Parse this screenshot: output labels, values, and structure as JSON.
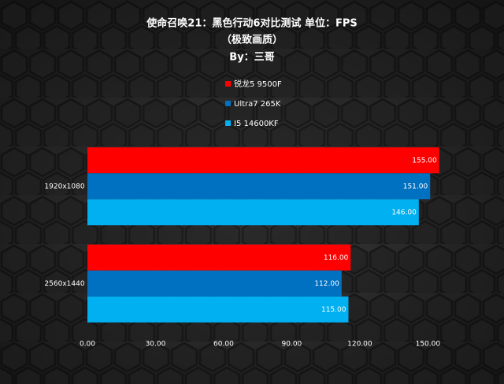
{
  "chart_data": {
    "type": "bar",
    "orientation": "horizontal",
    "title": "使命召唤21：黑色行动6对比测试 单位：FPS",
    "subtitle": "（极致画质）",
    "author": "By：三哥",
    "categories": [
      "1920x1080",
      "2560x1440"
    ],
    "series": [
      {
        "name": "锐龙5 9500F",
        "color": "#ff0000",
        "values": [
          155,
          116
        ],
        "value_labels": [
          "155.00",
          "116.00"
        ]
      },
      {
        "name": "Ultra7 265K",
        "color": "#0070c0",
        "values": [
          151,
          112
        ],
        "value_labels": [
          "151.00",
          "112.00"
        ]
      },
      {
        "name": "I5 14600KF",
        "color": "#00b0f0",
        "values": [
          146,
          115
        ],
        "value_labels": [
          "146.00",
          "115.00"
        ]
      }
    ],
    "xlim": [
      0,
      170
    ],
    "xticks": [
      {
        "value": 0,
        "label": "0.00"
      },
      {
        "value": 30,
        "label": "30.00"
      },
      {
        "value": 60,
        "label": "60.00"
      },
      {
        "value": 90,
        "label": "90.00"
      },
      {
        "value": 120,
        "label": "120.00"
      },
      {
        "value": 150,
        "label": "150.00"
      }
    ],
    "legend": "top"
  }
}
